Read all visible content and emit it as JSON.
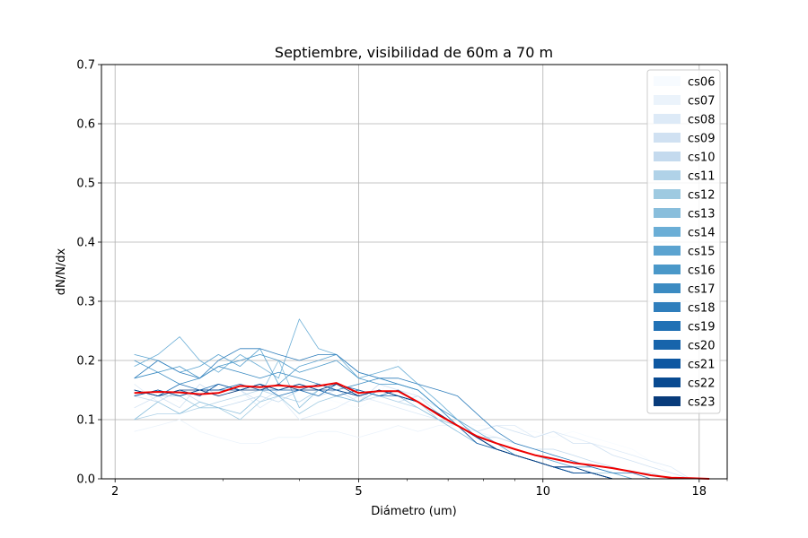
{
  "chart_data": {
    "type": "line",
    "title": "Septiembre, visibilidad de 60m a 70 m",
    "xlabel": "Diámetro (um)",
    "ylabel": "dN/N/dx",
    "xscale": "log",
    "xlim": [
      1.9,
      20
    ],
    "ylim": [
      0,
      0.7
    ],
    "xticks": [
      2,
      5,
      10,
      18
    ],
    "yticks": [
      0.0,
      0.1,
      0.2,
      0.3,
      0.4,
      0.5,
      0.6,
      0.7
    ],
    "ytick_labels": [
      "0.0",
      "0.1",
      "0.2",
      "0.3",
      "0.4",
      "0.5",
      "0.6",
      "0.7"
    ],
    "grid": true,
    "legend_position": "top-right",
    "x": [
      2.15,
      2.35,
      2.55,
      2.75,
      2.95,
      3.2,
      3.45,
      3.7,
      4.0,
      4.3,
      4.6,
      5.0,
      5.4,
      5.8,
      6.25,
      6.75,
      7.25,
      7.8,
      8.4,
      9.0,
      9.7,
      10.4,
      11.2,
      12.0,
      13.0,
      14.0,
      15.0,
      16.2,
      17.4,
      18.7
    ],
    "series": [
      {
        "name": "cs06",
        "color": "#f7fbff",
        "values": [
          0.14,
          0.15,
          0.13,
          0.15,
          0.14,
          0.13,
          0.15,
          0.14,
          0.13,
          0.14,
          0.13,
          0.12,
          0.14,
          0.2,
          0.13,
          0.12,
          0.1,
          0.09,
          0.09,
          0.08,
          0.08,
          0.07,
          0.08,
          0.07,
          0.06,
          0.05,
          0.03,
          0.01,
          0.0,
          0.0
        ]
      },
      {
        "name": "cs07",
        "color": "#ebf3fb",
        "values": [
          0.08,
          0.09,
          0.1,
          0.08,
          0.07,
          0.06,
          0.06,
          0.07,
          0.07,
          0.08,
          0.08,
          0.07,
          0.08,
          0.09,
          0.08,
          0.09,
          0.09,
          0.08,
          0.07,
          0.06,
          0.05,
          0.04,
          0.03,
          0.02,
          0.01,
          0.01,
          0.0,
          0.0,
          0.0,
          0.0
        ]
      },
      {
        "name": "cs08",
        "color": "#ddeaf7",
        "values": [
          0.16,
          0.13,
          0.15,
          0.14,
          0.16,
          0.15,
          0.12,
          0.14,
          0.1,
          0.11,
          0.12,
          0.14,
          0.13,
          0.12,
          0.11,
          0.1,
          0.09,
          0.08,
          0.09,
          0.09,
          0.07,
          0.08,
          0.07,
          0.06,
          0.05,
          0.04,
          0.03,
          0.02,
          0.0,
          0.0
        ]
      },
      {
        "name": "cs09",
        "color": "#d0e1f2",
        "values": [
          0.12,
          0.14,
          0.12,
          0.16,
          0.14,
          0.15,
          0.13,
          0.15,
          0.16,
          0.15,
          0.14,
          0.13,
          0.16,
          0.15,
          0.14,
          0.12,
          0.1,
          0.08,
          0.09,
          0.08,
          0.07,
          0.08,
          0.06,
          0.06,
          0.04,
          0.03,
          0.02,
          0.01,
          0.0,
          0.0
        ]
      },
      {
        "name": "cs10",
        "color": "#c4daee",
        "values": [
          0.14,
          0.13,
          0.15,
          0.13,
          0.12,
          0.13,
          0.14,
          0.13,
          0.15,
          0.14,
          0.15,
          0.13,
          0.14,
          0.13,
          0.14,
          0.11,
          0.09,
          0.07,
          0.07,
          0.06,
          0.05,
          0.05,
          0.04,
          0.03,
          0.02,
          0.01,
          0.01,
          0.0,
          0.0,
          0.0
        ]
      },
      {
        "name": "cs11",
        "color": "#b0d2e8",
        "values": [
          0.1,
          0.11,
          0.11,
          0.12,
          0.13,
          0.14,
          0.15,
          0.14,
          0.13,
          0.15,
          0.16,
          0.15,
          0.14,
          0.13,
          0.12,
          0.1,
          0.09,
          0.07,
          0.06,
          0.05,
          0.04,
          0.03,
          0.02,
          0.02,
          0.01,
          0.0,
          0.0,
          0.0,
          0.0,
          0.0
        ]
      },
      {
        "name": "cs12",
        "color": "#9ecae1",
        "values": [
          0.15,
          0.14,
          0.14,
          0.12,
          0.12,
          0.1,
          0.13,
          0.14,
          0.11,
          0.13,
          0.14,
          0.13,
          0.15,
          0.14,
          0.13,
          0.1,
          0.09,
          0.07,
          0.06,
          0.05,
          0.04,
          0.03,
          0.02,
          0.01,
          0.01,
          0.0,
          0.0,
          0.0,
          0.0,
          0.0
        ]
      },
      {
        "name": "cs13",
        "color": "#89bedc",
        "values": [
          0.1,
          0.13,
          0.11,
          0.13,
          0.12,
          0.11,
          0.14,
          0.2,
          0.12,
          0.15,
          0.14,
          0.13,
          0.15,
          0.14,
          0.12,
          0.1,
          0.08,
          0.06,
          0.05,
          0.04,
          0.03,
          0.02,
          0.02,
          0.01,
          0.0,
          0.0,
          0.0,
          0.0,
          0.0,
          0.0
        ]
      },
      {
        "name": "cs14",
        "color": "#6baed6",
        "values": [
          0.19,
          0.21,
          0.24,
          0.2,
          0.18,
          0.21,
          0.19,
          0.17,
          0.27,
          0.22,
          0.21,
          0.17,
          0.18,
          0.19,
          0.16,
          0.13,
          0.1,
          0.08,
          0.06,
          0.05,
          0.04,
          0.03,
          0.02,
          0.02,
          0.01,
          0.0,
          0.0,
          0.0,
          0.0,
          0.0
        ]
      },
      {
        "name": "cs15",
        "color": "#5ba3d0",
        "values": [
          0.21,
          0.2,
          0.18,
          0.19,
          0.21,
          0.19,
          0.22,
          0.16,
          0.19,
          0.2,
          0.21,
          0.18,
          0.17,
          0.16,
          0.15,
          0.12,
          0.09,
          0.07,
          0.05,
          0.04,
          0.03,
          0.02,
          0.02,
          0.01,
          0.0,
          0.0,
          0.0,
          0.0,
          0.0,
          0.0
        ]
      },
      {
        "name": "cs16",
        "color": "#4a98c9",
        "values": [
          0.2,
          0.18,
          0.19,
          0.17,
          0.19,
          0.2,
          0.21,
          0.2,
          0.18,
          0.19,
          0.2,
          0.17,
          0.16,
          0.16,
          0.15,
          0.12,
          0.1,
          0.07,
          0.06,
          0.04,
          0.03,
          0.02,
          0.01,
          0.01,
          0.0,
          0.0,
          0.0,
          0.0,
          0.0,
          0.0
        ]
      },
      {
        "name": "cs17",
        "color": "#3b8bc2",
        "values": [
          0.17,
          0.18,
          0.16,
          0.17,
          0.19,
          0.18,
          0.17,
          0.18,
          0.17,
          0.16,
          0.15,
          0.16,
          0.17,
          0.16,
          0.15,
          0.12,
          0.09,
          0.07,
          0.05,
          0.04,
          0.03,
          0.02,
          0.01,
          0.01,
          0.0,
          0.0,
          0.0,
          0.0,
          0.0,
          0.0
        ]
      },
      {
        "name": "cs18",
        "color": "#2f7ebc",
        "values": [
          0.17,
          0.2,
          0.18,
          0.17,
          0.2,
          0.22,
          0.22,
          0.21,
          0.2,
          0.21,
          0.21,
          0.18,
          0.17,
          0.17,
          0.16,
          0.15,
          0.14,
          0.11,
          0.08,
          0.06,
          0.05,
          0.04,
          0.03,
          0.02,
          0.01,
          0.01,
          0.0,
          0.0,
          0.0,
          0.0
        ]
      },
      {
        "name": "cs19",
        "color": "#2171b5",
        "values": [
          0.15,
          0.14,
          0.16,
          0.15,
          0.16,
          0.15,
          0.16,
          0.14,
          0.15,
          0.14,
          0.16,
          0.15,
          0.14,
          0.14,
          0.13,
          0.11,
          0.09,
          0.07,
          0.05,
          0.04,
          0.03,
          0.02,
          0.02,
          0.01,
          0.0,
          0.0,
          0.0,
          0.0,
          0.0,
          0.0
        ]
      },
      {
        "name": "cs20",
        "color": "#1764ab",
        "values": [
          0.14,
          0.15,
          0.14,
          0.15,
          0.15,
          0.16,
          0.15,
          0.15,
          0.16,
          0.15,
          0.14,
          0.15,
          0.14,
          0.15,
          0.13,
          0.11,
          0.09,
          0.07,
          0.05,
          0.04,
          0.03,
          0.02,
          0.01,
          0.01,
          0.0,
          0.0,
          0.0,
          0.0,
          0.0,
          0.0
        ]
      },
      {
        "name": "cs21",
        "color": "#0d57a1",
        "values": [
          0.15,
          0.14,
          0.15,
          0.14,
          0.16,
          0.15,
          0.16,
          0.15,
          0.15,
          0.16,
          0.15,
          0.14,
          0.15,
          0.14,
          0.13,
          0.11,
          0.09,
          0.06,
          0.05,
          0.04,
          0.03,
          0.02,
          0.01,
          0.01,
          0.0,
          0.0,
          0.0,
          0.0,
          0.0,
          0.0
        ]
      },
      {
        "name": "cs22",
        "color": "#084a91",
        "values": [
          0.14,
          0.15,
          0.14,
          0.15,
          0.15,
          0.15,
          0.16,
          0.15,
          0.16,
          0.15,
          0.15,
          0.14,
          0.15,
          0.14,
          0.13,
          0.11,
          0.09,
          0.07,
          0.05,
          0.04,
          0.03,
          0.02,
          0.01,
          0.01,
          0.0,
          0.0,
          0.0,
          0.0,
          0.0,
          0.0
        ]
      },
      {
        "name": "cs23",
        "color": "#083b7b",
        "values": [
          0.15,
          0.14,
          0.15,
          0.15,
          0.14,
          0.15,
          0.15,
          0.16,
          0.15,
          0.15,
          0.16,
          0.14,
          0.15,
          0.14,
          0.13,
          0.11,
          0.09,
          0.07,
          0.05,
          0.04,
          0.03,
          0.02,
          0.02,
          0.01,
          0.0,
          0.0,
          0.0,
          0.0,
          0.0,
          0.0
        ]
      }
    ],
    "mean_line": {
      "color": "#ee0000",
      "x": [
        2.15,
        2.35,
        2.55,
        2.75,
        2.95,
        3.2,
        3.45,
        3.7,
        4.0,
        4.3,
        4.6,
        5.0,
        5.4,
        5.8,
        6.25,
        6.75,
        7.25,
        7.8,
        8.4,
        9.0,
        9.7,
        10.4,
        11.2,
        12.0,
        13.0,
        14.0,
        15.0,
        16.2,
        17.4,
        18.7
      ],
      "values": [
        0.145,
        0.147,
        0.146,
        0.143,
        0.145,
        0.157,
        0.155,
        0.158,
        0.155,
        0.157,
        0.162,
        0.145,
        0.148,
        0.148,
        0.13,
        0.108,
        0.09,
        0.072,
        0.06,
        0.05,
        0.04,
        0.034,
        0.027,
        0.023,
        0.018,
        0.012,
        0.006,
        0.002,
        0.001,
        0.0
      ]
    }
  }
}
